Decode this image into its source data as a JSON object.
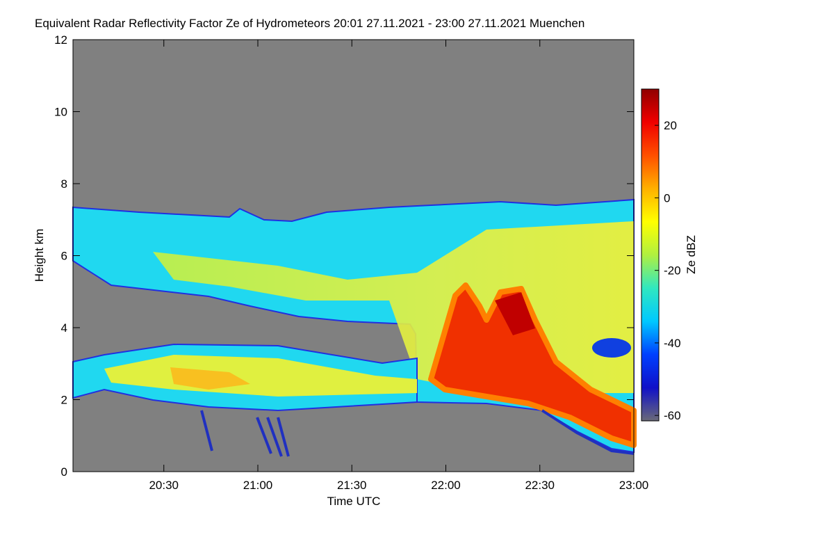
{
  "chart_data": {
    "type": "heatmap",
    "title": "Equivalent Radar Reflectivity Factor Ze of Hydrometeors   20:01 27.11.2021 - 23:00 27.11.2021 Muenchen",
    "x_label": "Time UTC",
    "y_label": "Height km",
    "xlim": [
      "20:01",
      "23:00"
    ],
    "xticks": [
      "20:30",
      "21:00",
      "21:30",
      "22:00",
      "22:30",
      "23:00"
    ],
    "ylim": [
      0,
      12
    ],
    "yticks": [
      0,
      2,
      4,
      6,
      8,
      10,
      12
    ],
    "colorbar": {
      "label": "Ze dBZ",
      "lim": [
        -61.5,
        30
      ],
      "ticks": [
        20,
        0,
        -20,
        -40,
        -60
      ],
      "colors": [
        "#6a6a78",
        "#1010c8",
        "#0040ff",
        "#00c8ff",
        "#30e8c0",
        "#b0f040",
        "#ffff00",
        "#ffb000",
        "#ff5000",
        "#f00000",
        "#900000"
      ]
    }
  }
}
